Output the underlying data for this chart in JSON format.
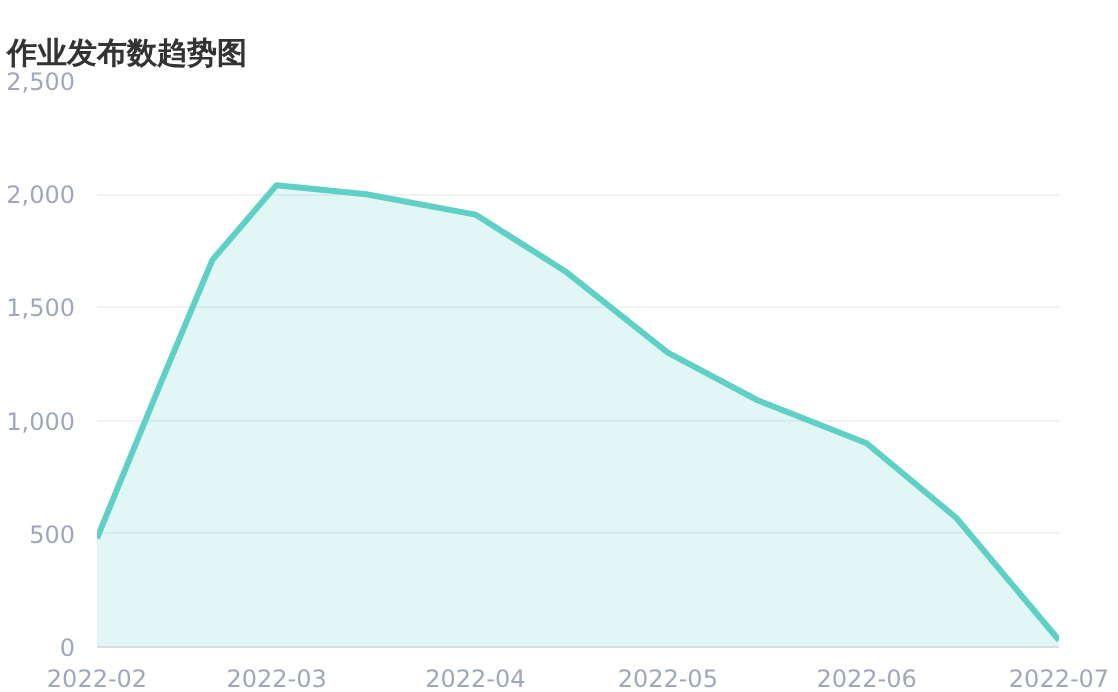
{
  "chart_data": {
    "type": "area",
    "title": "作业发布数趋势图",
    "x": [
      "2022-02",
      "2022-02-11",
      "2022-02-19",
      "2022-03",
      "2022-03-15",
      "2022-04",
      "2022-04-15",
      "2022-05",
      "2022-05-15",
      "2022-06",
      "2022-06-15",
      "2022-07"
    ],
    "series": [
      {
        "color": "#5fd0c5",
        "values": [
          480,
          1170,
          1710,
          2040,
          2000,
          1910,
          1660,
          1300,
          1090,
          900,
          570,
          30
        ]
      }
    ],
    "xlim": [
      "2022-02",
      "2022-07"
    ],
    "xticks": [
      "2022-02",
      "2022-03",
      "2022-04",
      "2022-05",
      "2022-06",
      "2022-07"
    ],
    "ylim": [
      0,
      2500
    ],
    "yticks": [
      0,
      500,
      {
        "value": 1000,
        "label": "1,000"
      },
      {
        "value": 1500,
        "label": "1,500"
      },
      {
        "value": 2000,
        "label": "2,000"
      },
      {
        "value": 2500,
        "label": "2,500"
      }
    ],
    "grid": "y",
    "marker": "none",
    "line_style": "solid"
  }
}
